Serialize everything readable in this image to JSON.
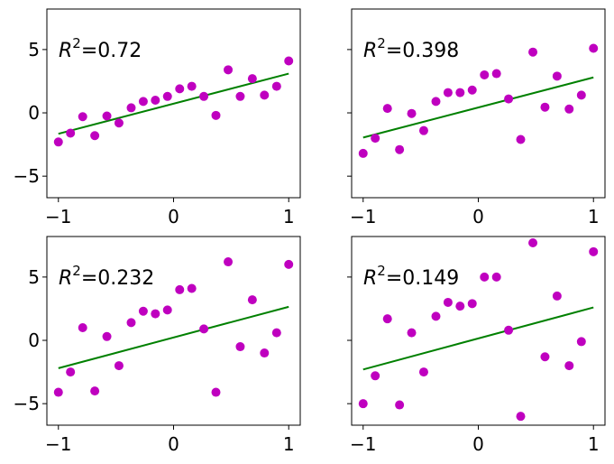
{
  "chart_data": [
    {
      "type": "scatter",
      "annotation": {
        "symbol": "R",
        "exponent": "2",
        "value": "=0.72"
      },
      "xlim": [
        -1.1,
        1.1
      ],
      "ylim": [
        -6.7,
        8.2
      ],
      "xticks": [
        {
          "v": -1,
          "label": "−1"
        },
        {
          "v": 0,
          "label": "0"
        },
        {
          "v": 1,
          "label": "1"
        }
      ],
      "yticks": [
        {
          "v": -5,
          "label": "−5"
        },
        {
          "v": 0,
          "label": "0"
        },
        {
          "v": 5,
          "label": "5"
        }
      ],
      "show_ytick_labels": true,
      "fit_line": {
        "x": [
          -1,
          1
        ],
        "y": [
          -1.65,
          3.1
        ],
        "color": "#008000"
      },
      "points": {
        "color": "#bf00bf",
        "x": [
          -1.0,
          -0.895,
          -0.789,
          -0.684,
          -0.579,
          -0.474,
          -0.368,
          -0.263,
          -0.158,
          -0.053,
          0.053,
          0.158,
          0.263,
          0.368,
          0.474,
          0.579,
          0.684,
          0.789,
          0.895,
          1.0
        ],
        "y": [
          -2.3,
          -1.6,
          -0.3,
          -1.8,
          -0.25,
          -0.8,
          0.4,
          0.9,
          1.0,
          1.3,
          1.9,
          2.1,
          1.3,
          -0.2,
          3.4,
          1.3,
          2.7,
          1.4,
          2.1,
          4.1
        ]
      }
    },
    {
      "type": "scatter",
      "annotation": {
        "symbol": "R",
        "exponent": "2",
        "value": "=0.398"
      },
      "xlim": [
        -1.1,
        1.1
      ],
      "ylim": [
        -6.7,
        8.2
      ],
      "xticks": [
        {
          "v": -1,
          "label": "−1"
        },
        {
          "v": 0,
          "label": "0"
        },
        {
          "v": 1,
          "label": "1"
        }
      ],
      "yticks": [
        {
          "v": -5,
          "label": ""
        },
        {
          "v": 0,
          "label": ""
        },
        {
          "v": 5,
          "label": ""
        }
      ],
      "show_ytick_labels": false,
      "fit_line": {
        "x": [
          -1,
          1
        ],
        "y": [
          -1.95,
          2.8
        ],
        "color": "#008000"
      },
      "points": {
        "color": "#bf00bf",
        "x": [
          -1.0,
          -0.895,
          -0.789,
          -0.684,
          -0.579,
          -0.474,
          -0.368,
          -0.263,
          -0.158,
          -0.053,
          0.053,
          0.158,
          0.263,
          0.368,
          0.474,
          0.579,
          0.684,
          0.789,
          0.895,
          1.0
        ],
        "y": [
          -3.2,
          -2.0,
          0.35,
          -2.9,
          -0.05,
          -1.4,
          0.9,
          1.6,
          1.6,
          1.8,
          3.0,
          3.1,
          1.1,
          -2.1,
          4.8,
          0.45,
          2.9,
          0.3,
          1.4,
          5.1
        ]
      }
    },
    {
      "type": "scatter",
      "annotation": {
        "symbol": "R",
        "exponent": "2",
        "value": "=0.232"
      },
      "xlim": [
        -1.1,
        1.1
      ],
      "ylim": [
        -6.7,
        8.2
      ],
      "xticks": [
        {
          "v": -1,
          "label": "−1"
        },
        {
          "v": 0,
          "label": "0"
        },
        {
          "v": 1,
          "label": "1"
        }
      ],
      "yticks": [
        {
          "v": -5,
          "label": "−5"
        },
        {
          "v": 0,
          "label": "0"
        },
        {
          "v": 5,
          "label": "5"
        }
      ],
      "show_ytick_labels": true,
      "fit_line": {
        "x": [
          -1,
          1
        ],
        "y": [
          -2.2,
          2.65
        ],
        "color": "#008000"
      },
      "points": {
        "color": "#bf00bf",
        "x": [
          -1.0,
          -0.895,
          -0.789,
          -0.684,
          -0.579,
          -0.474,
          -0.368,
          -0.263,
          -0.158,
          -0.053,
          0.053,
          0.158,
          0.263,
          0.368,
          0.474,
          0.579,
          0.684,
          0.789,
          0.895,
          1.0
        ],
        "y": [
          -4.1,
          -2.5,
          1.0,
          -4.0,
          0.3,
          -2.0,
          1.4,
          2.3,
          2.1,
          2.4,
          4.0,
          4.1,
          0.9,
          -4.1,
          6.2,
          -0.5,
          3.2,
          -1.0,
          0.6,
          6.0
        ]
      }
    },
    {
      "type": "scatter",
      "annotation": {
        "symbol": "R",
        "exponent": "2",
        "value": "=0.149"
      },
      "xlim": [
        -1.1,
        1.1
      ],
      "ylim": [
        -6.7,
        8.2
      ],
      "xticks": [
        {
          "v": -1,
          "label": "−1"
        },
        {
          "v": 0,
          "label": "0"
        },
        {
          "v": 1,
          "label": "1"
        }
      ],
      "yticks": [
        {
          "v": -5,
          "label": ""
        },
        {
          "v": 0,
          "label": ""
        },
        {
          "v": 5,
          "label": ""
        }
      ],
      "show_ytick_labels": false,
      "fit_line": {
        "x": [
          -1,
          1
        ],
        "y": [
          -2.3,
          2.6
        ],
        "color": "#008000"
      },
      "points": {
        "color": "#bf00bf",
        "x": [
          -1.0,
          -0.895,
          -0.789,
          -0.684,
          -0.579,
          -0.474,
          -0.368,
          -0.263,
          -0.158,
          -0.053,
          0.053,
          0.158,
          0.263,
          0.368,
          0.474,
          0.579,
          0.684,
          0.789,
          0.895,
          1.0
        ],
        "y": [
          -5.0,
          -2.8,
          1.7,
          -5.1,
          0.6,
          -2.5,
          1.9,
          3.0,
          2.7,
          2.9,
          5.0,
          5.0,
          0.8,
          -6.0,
          7.7,
          -1.3,
          3.5,
          -2.0,
          -0.1,
          7.0
        ]
      }
    }
  ]
}
